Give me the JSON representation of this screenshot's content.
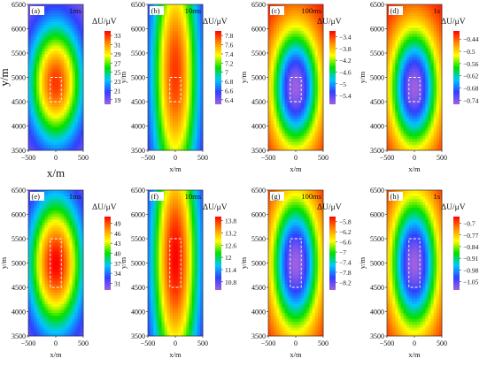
{
  "figure": {
    "axis_labels": {
      "ylabel": "y/m",
      "xlabel": "x/m",
      "colorbar_label": "ΔU/μV"
    },
    "colors": {
      "colormap": [
        "#a060e0",
        "#3040ff",
        "#00c8ff",
        "#00e000",
        "#ffff00",
        "#ff8a00",
        "#ff0000"
      ],
      "box_outline": "#ffffff",
      "label_box": "#ffffff"
    }
  },
  "chart_data": [
    {
      "type": "heatmap",
      "panel": "(a)",
      "time_label": "1ms",
      "xlim": [
        -500,
        500
      ],
      "ylim": [
        3500,
        6500
      ],
      "xticks": [
        "-500",
        "0",
        "500"
      ],
      "yticks": [
        "3500",
        "4000",
        "4500",
        "5000",
        "5500",
        "6000",
        "6500"
      ],
      "colorbar_ticks": [
        "33",
        "31",
        "29",
        "27",
        "25",
        "23",
        "21",
        "19"
      ],
      "colorbar_range": [
        18,
        34
      ],
      "field": {
        "center": [
          0,
          4900
        ],
        "peak": 33,
        "min": 18,
        "sigma_x": 480,
        "sigma_y": 1200,
        "polarity": "positive"
      },
      "source_box": {
        "x": [
          -100,
          100
        ],
        "y": [
          4500,
          5000
        ]
      }
    },
    {
      "type": "heatmap",
      "panel": "(b)",
      "time_label": "10ms",
      "xlim": [
        -500,
        500
      ],
      "ylim": [
        3500,
        6500
      ],
      "xticks": [
        "-500",
        "0",
        "500"
      ],
      "yticks": [
        "3500",
        "4000",
        "4500",
        "5000",
        "5500",
        "6000",
        "6500"
      ],
      "colorbar_ticks": [
        "7.8",
        "7.6",
        "7.4",
        "7.2",
        "7",
        "6.8",
        "6.6",
        "6.4"
      ],
      "colorbar_range": [
        6.3,
        7.9
      ],
      "field": {
        "center": [
          0,
          5100
        ],
        "peak": 7.8,
        "min": 6.3,
        "sigma_x": 420,
        "sigma_y": 2600,
        "polarity": "positive"
      },
      "source_box": {
        "x": [
          -100,
          100
        ],
        "y": [
          4500,
          5000
        ]
      }
    },
    {
      "type": "heatmap",
      "panel": "(c)",
      "time_label": "100ms",
      "xlim": [
        -500,
        500
      ],
      "ylim": [
        3500,
        6500
      ],
      "xticks": [
        "-500",
        "0",
        "500"
      ],
      "yticks": [
        "3500",
        "4000",
        "4500",
        "5000",
        "5500",
        "6000",
        "6500"
      ],
      "colorbar_ticks": [
        "-3.4",
        "-3.8",
        "-4.2",
        "-4.6",
        "-5",
        "-5.4"
      ],
      "colorbar_range": [
        -5.7,
        -3.2
      ],
      "field": {
        "center": [
          0,
          4800
        ],
        "peak": -5.7,
        "min": -3.2,
        "sigma_x": 430,
        "sigma_y": 1200,
        "polarity": "negative"
      },
      "source_box": {
        "x": [
          -100,
          100
        ],
        "y": [
          4500,
          5000
        ]
      }
    },
    {
      "type": "heatmap",
      "panel": "(d)",
      "time_label": "1s",
      "xlim": [
        -500,
        500
      ],
      "ylim": [
        3500,
        6500
      ],
      "xticks": [
        "-500",
        "0",
        "500"
      ],
      "yticks": [
        "3500",
        "4000",
        "4500",
        "5000",
        "5500",
        "6000",
        "6500"
      ],
      "colorbar_ticks": [
        "-0.44",
        "-0.5",
        "-0.56",
        "-0.62",
        "-0.68",
        "-0.74"
      ],
      "colorbar_range": [
        -0.76,
        -0.4
      ],
      "field": {
        "center": [
          0,
          4800
        ],
        "peak": -0.76,
        "min": -0.4,
        "sigma_x": 430,
        "sigma_y": 1200,
        "polarity": "negative"
      },
      "source_box": {
        "x": [
          -100,
          100
        ],
        "y": [
          4500,
          5000
        ]
      }
    },
    {
      "type": "heatmap",
      "panel": "(e)",
      "time_label": "1ms",
      "xlim": [
        -500,
        500
      ],
      "ylim": [
        3500,
        6500
      ],
      "xticks": [
        "-500",
        "0",
        "500"
      ],
      "yticks": [
        "3500",
        "4000",
        "4500",
        "5000",
        "5500",
        "6000",
        "6500"
      ],
      "colorbar_ticks": [
        "49",
        "46",
        "43",
        "40",
        "37",
        "34",
        "31"
      ],
      "colorbar_range": [
        29,
        51
      ],
      "field": {
        "center": [
          0,
          5000
        ],
        "peak": 51,
        "min": 29,
        "sigma_x": 480,
        "sigma_y": 1350,
        "polarity": "positive"
      },
      "source_box": {
        "x": [
          -100,
          100
        ],
        "y": [
          4500,
          5500
        ]
      }
    },
    {
      "type": "heatmap",
      "panel": "(f)",
      "time_label": "10ms",
      "xlim": [
        -500,
        500
      ],
      "ylim": [
        3500,
        6500
      ],
      "xticks": [
        "-500",
        "0",
        "500"
      ],
      "yticks": [
        "3500",
        "4000",
        "4500",
        "5000",
        "5500",
        "6000",
        "6500"
      ],
      "colorbar_ticks": [
        "13.8",
        "13.2",
        "12.6",
        "12",
        "11.4",
        "10.8"
      ],
      "colorbar_range": [
        10.4,
        14.0
      ],
      "field": {
        "center": [
          0,
          5100
        ],
        "peak": 14.0,
        "min": 10.4,
        "sigma_x": 420,
        "sigma_y": 2600,
        "polarity": "positive"
      },
      "source_box": {
        "x": [
          -100,
          100
        ],
        "y": [
          4500,
          5500
        ]
      }
    },
    {
      "type": "heatmap",
      "panel": "(g)",
      "time_label": "100ms",
      "xlim": [
        -500,
        500
      ],
      "ylim": [
        3500,
        6500
      ],
      "xticks": [
        "-500",
        "0",
        "500"
      ],
      "yticks": [
        "3500",
        "4000",
        "4500",
        "5000",
        "5500",
        "6000",
        "6500"
      ],
      "colorbar_ticks": [
        "-5.8",
        "-6.2",
        "-6.6",
        "-7",
        "-7.4",
        "-7.8",
        "-8.2"
      ],
      "colorbar_range": [
        -8.5,
        -5.6
      ],
      "field": {
        "center": [
          0,
          5000
        ],
        "peak": -8.5,
        "min": -5.6,
        "sigma_x": 430,
        "sigma_y": 1350,
        "polarity": "negative"
      },
      "source_box": {
        "x": [
          -100,
          100
        ],
        "y": [
          4500,
          5500
        ]
      }
    },
    {
      "type": "heatmap",
      "panel": "(h)",
      "time_label": "1s",
      "xlim": [
        -500,
        500
      ],
      "ylim": [
        3500,
        6500
      ],
      "xticks": [
        "-500",
        "0",
        "500"
      ],
      "yticks": [
        "3500",
        "4000",
        "4500",
        "5000",
        "5500",
        "6000",
        "6500"
      ],
      "colorbar_ticks": [
        "-0.7",
        "-0.77",
        "-0.84",
        "-0.91",
        "-0.98",
        "-1.05"
      ],
      "colorbar_range": [
        -1.1,
        -0.66
      ],
      "field": {
        "center": [
          0,
          5000
        ],
        "peak": -1.1,
        "min": -0.66,
        "sigma_x": 430,
        "sigma_y": 1350,
        "polarity": "negative"
      },
      "source_box": {
        "x": [
          -100,
          100
        ],
        "y": [
          4500,
          5500
        ]
      }
    }
  ]
}
